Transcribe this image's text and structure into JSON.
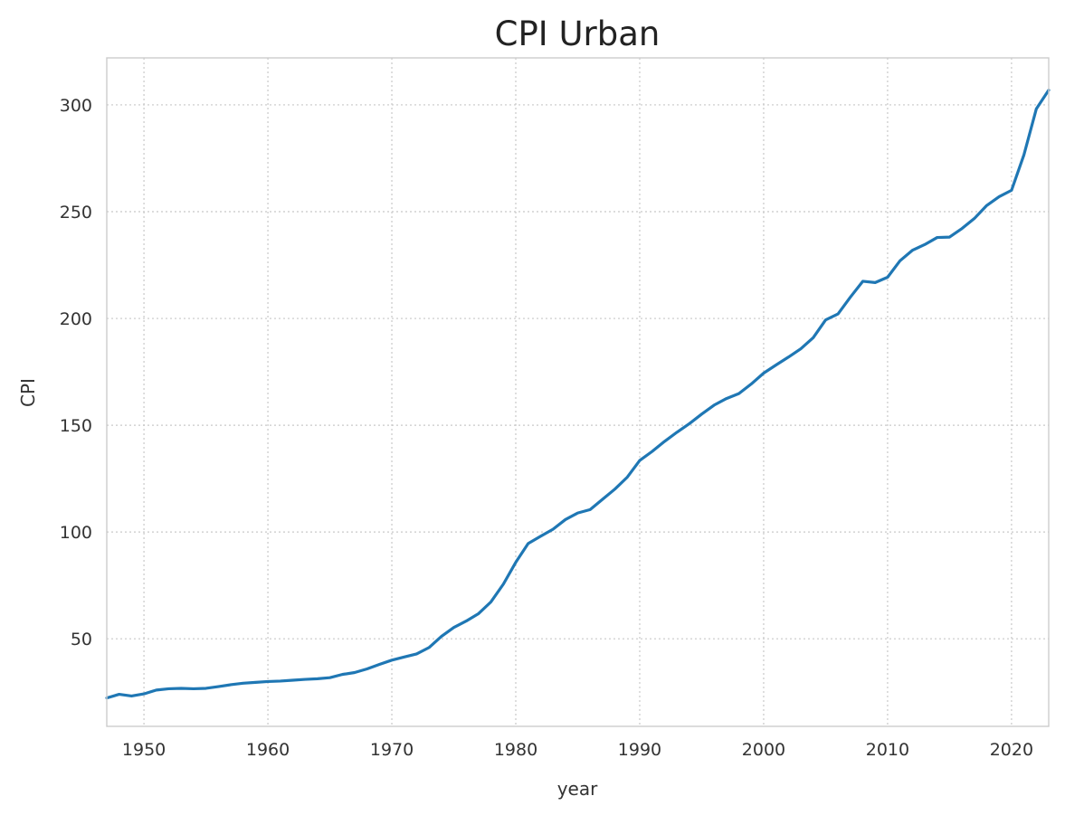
{
  "chart_data": {
    "type": "line",
    "title": "CPI Urban",
    "xlabel": "year",
    "ylabel": "CPI",
    "xlim": [
      1947,
      2023
    ],
    "ylim": [
      9,
      322
    ],
    "grid": true,
    "x_ticks": [
      1950,
      1960,
      1970,
      1980,
      1990,
      2000,
      2010,
      2020
    ],
    "y_ticks": [
      50,
      100,
      150,
      200,
      250,
      300
    ],
    "series": [
      {
        "color": "#1f77b4",
        "x": [
          1947,
          1948,
          1949,
          1950,
          1951,
          1952,
          1953,
          1954,
          1955,
          1956,
          1957,
          1958,
          1959,
          1960,
          1961,
          1962,
          1963,
          1964,
          1965,
          1966,
          1967,
          1968,
          1969,
          1970,
          1971,
          1972,
          1973,
          1974,
          1975,
          1976,
          1977,
          1978,
          1979,
          1980,
          1981,
          1982,
          1983,
          1984,
          1985,
          1986,
          1987,
          1988,
          1989,
          1990,
          1991,
          1992,
          1993,
          1994,
          1995,
          1996,
          1997,
          1998,
          1999,
          2000,
          2001,
          2002,
          2003,
          2004,
          2005,
          2006,
          2007,
          2008,
          2009,
          2010,
          2011,
          2012,
          2013,
          2014,
          2015,
          2016,
          2017,
          2018,
          2019,
          2020,
          2021,
          2022,
          2023
        ],
        "y": [
          22.3,
          24.0,
          23.2,
          24.2,
          26.0,
          26.6,
          26.8,
          26.6,
          26.8,
          27.6,
          28.5,
          29.2,
          29.6,
          30.0,
          30.2,
          30.6,
          31.0,
          31.3,
          31.8,
          33.3,
          34.2,
          35.9,
          38.0,
          40.0,
          41.5,
          42.9,
          45.9,
          51.1,
          55.3,
          58.3,
          61.8,
          67.3,
          75.6,
          85.8,
          94.6,
          98.0,
          101.3,
          105.8,
          108.9,
          110.5,
          115.3,
          120.1,
          125.7,
          133.5,
          137.7,
          142.4,
          146.7,
          150.7,
          155.2,
          159.4,
          162.5,
          164.8,
          169.3,
          174.4,
          178.2,
          181.9,
          185.8,
          191.0,
          199.3,
          202.1,
          210.0,
          217.4,
          216.8,
          219.3,
          227.0,
          231.9,
          234.6,
          237.9,
          238.1,
          242.1,
          246.8,
          252.9,
          257.0,
          260.0,
          276.6,
          298.1,
          306.9
        ]
      }
    ]
  }
}
